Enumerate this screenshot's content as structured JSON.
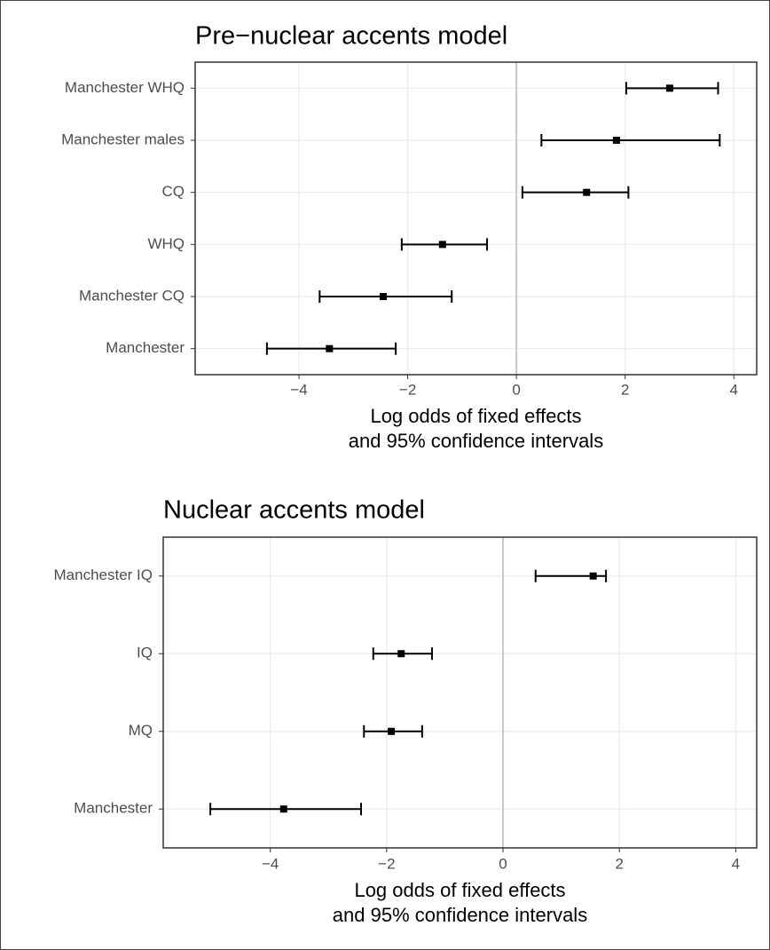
{
  "chart_data": [
    {
      "type": "errorbar",
      "title": "Pre−nuclear accents model",
      "categories": [
        "Manchester WHQ",
        "Manchester males",
        "CQ",
        "WHQ",
        "Manchester CQ",
        "Manchester"
      ],
      "values": [
        2.82,
        1.84,
        1.29,
        -1.36,
        -2.45,
        -3.44
      ],
      "lower": [
        2.02,
        0.46,
        0.11,
        -2.11,
        -3.62,
        -4.59
      ],
      "upper": [
        3.71,
        3.74,
        2.06,
        -0.54,
        -1.19,
        -2.22
      ],
      "xlim": [
        -5.91,
        4.42
      ],
      "xticks": [
        {
          "value": -4,
          "label": "−4"
        },
        {
          "value": -2,
          "label": "−2"
        },
        0,
        2,
        4
      ],
      "xlabel": [
        "Log odds of fixed effects",
        "and 95% confidence intervals"
      ],
      "vline": 0,
      "grid": true,
      "color": "#000000"
    },
    {
      "type": "errorbar",
      "title": "Nuclear accents model",
      "categories": [
        "Manchester IQ",
        "IQ",
        "MQ",
        "Manchester"
      ],
      "values": [
        1.55,
        -1.75,
        -1.92,
        -3.77
      ],
      "lower": [
        0.56,
        -2.23,
        -2.39,
        -5.03
      ],
      "upper": [
        1.77,
        -1.22,
        -1.39,
        -2.44
      ],
      "xlim": [
        -5.84,
        4.36
      ],
      "xticks": [
        {
          "value": -4,
          "label": "−4"
        },
        {
          "value": -2,
          "label": "−2"
        },
        0,
        2,
        4
      ],
      "xlabel": [
        "Log odds of fixed effects",
        "and 95% confidence intervals"
      ],
      "vline": 0,
      "grid": true,
      "color": "#000000"
    }
  ]
}
